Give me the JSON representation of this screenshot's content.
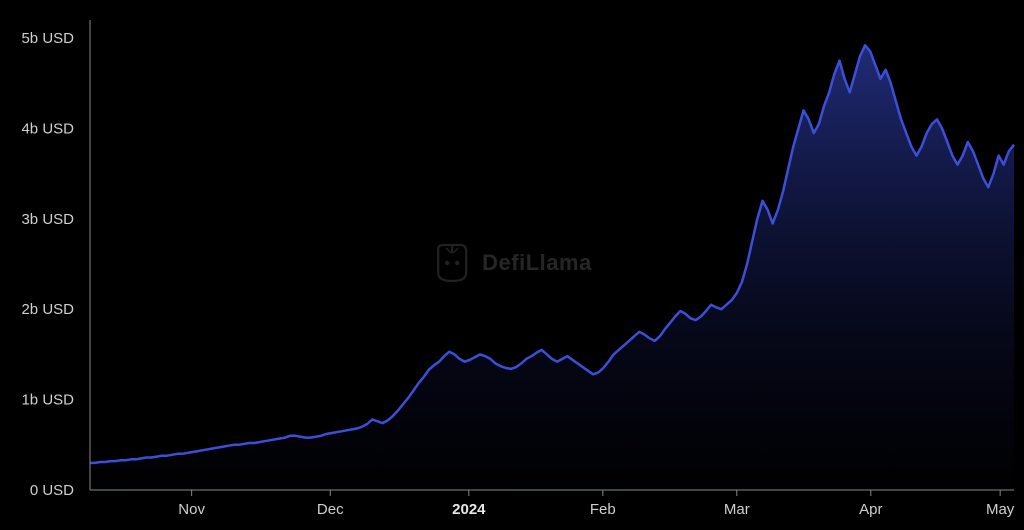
{
  "chart": {
    "type": "area",
    "background_color": "#000000",
    "line_color": "#3b4fd9",
    "fill_top_color": "rgba(59,79,217,0.55)",
    "fill_bottom_color": "rgba(10,15,60,0.05)",
    "line_width": 2.5,
    "axis_color": "#888888",
    "label_color": "#cfcfcf",
    "label_fontsize": 15,
    "ylim": [
      0,
      5.2
    ],
    "ytick_values": [
      0,
      1,
      2,
      3,
      4,
      5
    ],
    "ytick_labels": [
      "0 USD",
      "1b USD",
      "2b USD",
      "3b USD",
      "4b USD",
      "5b USD"
    ],
    "xtick_labels": [
      "Nov",
      "Dec",
      "2024",
      "Feb",
      "Mar",
      "Apr",
      "May"
    ],
    "xtick_positions": [
      0.11,
      0.26,
      0.41,
      0.555,
      0.7,
      0.845,
      0.985
    ],
    "xtick_bold_index": 2,
    "data": [
      0.3,
      0.3,
      0.31,
      0.31,
      0.32,
      0.32,
      0.33,
      0.33,
      0.34,
      0.34,
      0.35,
      0.36,
      0.36,
      0.37,
      0.38,
      0.38,
      0.39,
      0.4,
      0.4,
      0.41,
      0.42,
      0.43,
      0.44,
      0.45,
      0.46,
      0.47,
      0.48,
      0.49,
      0.5,
      0.5,
      0.51,
      0.52,
      0.52,
      0.53,
      0.54,
      0.55,
      0.56,
      0.57,
      0.58,
      0.6,
      0.6,
      0.59,
      0.58,
      0.58,
      0.59,
      0.6,
      0.62,
      0.63,
      0.64,
      0.65,
      0.66,
      0.67,
      0.68,
      0.7,
      0.73,
      0.78,
      0.76,
      0.74,
      0.77,
      0.82,
      0.88,
      0.95,
      1.02,
      1.1,
      1.18,
      1.25,
      1.33,
      1.38,
      1.42,
      1.48,
      1.53,
      1.5,
      1.45,
      1.42,
      1.44,
      1.47,
      1.5,
      1.48,
      1.45,
      1.4,
      1.37,
      1.35,
      1.34,
      1.36,
      1.4,
      1.45,
      1.48,
      1.52,
      1.55,
      1.5,
      1.45,
      1.42,
      1.45,
      1.48,
      1.44,
      1.4,
      1.36,
      1.32,
      1.28,
      1.3,
      1.35,
      1.42,
      1.5,
      1.55,
      1.6,
      1.65,
      1.7,
      1.75,
      1.72,
      1.68,
      1.65,
      1.7,
      1.78,
      1.85,
      1.92,
      1.98,
      1.95,
      1.9,
      1.88,
      1.92,
      1.98,
      2.05,
      2.02,
      2.0,
      2.05,
      2.1,
      2.18,
      2.3,
      2.5,
      2.75,
      3.0,
      3.2,
      3.1,
      2.95,
      3.1,
      3.3,
      3.55,
      3.8,
      4.0,
      4.2,
      4.1,
      3.95,
      4.05,
      4.25,
      4.4,
      4.6,
      4.75,
      4.55,
      4.4,
      4.6,
      4.8,
      4.92,
      4.85,
      4.7,
      4.55,
      4.65,
      4.5,
      4.3,
      4.1,
      3.95,
      3.8,
      3.7,
      3.8,
      3.95,
      4.05,
      4.1,
      4.0,
      3.85,
      3.7,
      3.6,
      3.7,
      3.85,
      3.75,
      3.6,
      3.45,
      3.35,
      3.5,
      3.7,
      3.6,
      3.75,
      3.82
    ]
  },
  "watermark": {
    "text": "DefiLlama",
    "icon_name": "defillama-logo"
  }
}
